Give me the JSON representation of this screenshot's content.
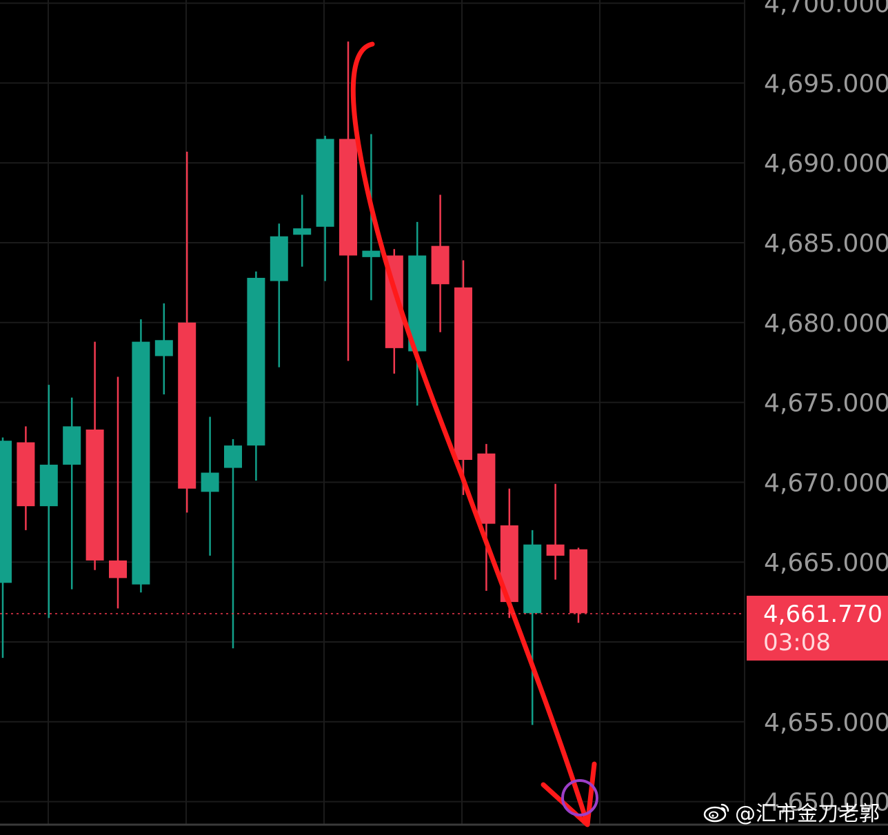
{
  "chart_data": {
    "type": "candlestick",
    "ylim": [
      4648.6,
      4700.2
    ],
    "y_ticks": [
      "4,650.000",
      "4,655.000",
      "4,665.000",
      "4,670.000",
      "4,675.000",
      "4,680.000",
      "4,685.000",
      "4,690.000",
      "4,695.000",
      "4,700.000"
    ],
    "grid": true,
    "colors": {
      "up": "#12a08a",
      "down": "#f2394f",
      "background": "#000000",
      "annotation": "#ff1a1a"
    },
    "candles": [
      {
        "open": 4663.7,
        "high": 4672.8,
        "low": 4659.0,
        "close": 4672.6
      },
      {
        "open": 4672.5,
        "high": 4673.5,
        "low": 4667.0,
        "close": 4668.5
      },
      {
        "open": 4668.5,
        "high": 4676.1,
        "low": 4661.5,
        "close": 4671.1
      },
      {
        "open": 4671.1,
        "high": 4675.3,
        "low": 4663.3,
        "close": 4673.5
      },
      {
        "open": 4673.3,
        "high": 4678.8,
        "low": 4664.5,
        "close": 4665.1
      },
      {
        "open": 4665.1,
        "high": 4676.6,
        "low": 4662.1,
        "close": 4664.0
      },
      {
        "open": 4663.6,
        "high": 4680.2,
        "low": 4663.1,
        "close": 4678.8
      },
      {
        "open": 4677.9,
        "high": 4681.2,
        "low": 4675.5,
        "close": 4678.9
      },
      {
        "open": 4680.0,
        "high": 4690.7,
        "low": 4668.1,
        "close": 4669.6
      },
      {
        "open": 4669.4,
        "high": 4674.1,
        "low": 4665.4,
        "close": 4670.6
      },
      {
        "open": 4670.9,
        "high": 4672.7,
        "low": 4659.6,
        "close": 4672.3
      },
      {
        "open": 4672.3,
        "high": 4683.2,
        "low": 4670.1,
        "close": 4682.8
      },
      {
        "open": 4682.6,
        "high": 4686.2,
        "low": 4677.2,
        "close": 4685.4
      },
      {
        "open": 4685.5,
        "high": 4688.0,
        "low": 4683.5,
        "close": 4685.9
      },
      {
        "open": 4686.0,
        "high": 4691.7,
        "low": 4682.6,
        "close": 4691.5
      },
      {
        "open": 4691.5,
        "high": 4697.6,
        "low": 4677.6,
        "close": 4684.2
      },
      {
        "open": 4684.1,
        "high": 4691.8,
        "low": 4681.4,
        "close": 4684.5
      },
      {
        "open": 4684.2,
        "high": 4684.6,
        "low": 4676.8,
        "close": 4678.4
      },
      {
        "open": 4678.2,
        "high": 4686.3,
        "low": 4674.8,
        "close": 4684.2
      },
      {
        "open": 4684.8,
        "high": 4688.0,
        "low": 4679.4,
        "close": 4682.4
      },
      {
        "open": 4682.2,
        "high": 4683.9,
        "low": 4669.2,
        "close": 4671.4
      },
      {
        "open": 4671.8,
        "high": 4672.4,
        "low": 4663.2,
        "close": 4667.4
      },
      {
        "open": 4667.3,
        "high": 4669.6,
        "low": 4661.5,
        "close": 4662.5
      },
      {
        "open": 4661.8,
        "high": 4667.0,
        "low": 4654.8,
        "close": 4666.1
      },
      {
        "open": 4666.1,
        "high": 4669.9,
        "low": 4663.9,
        "close": 4665.4
      },
      {
        "open": 4665.8,
        "high": 4665.9,
        "low": 4661.2,
        "close": 4661.8
      }
    ],
    "current_price": "4,661.770",
    "countdown": "03:08"
  },
  "watermark": {
    "text": "@汇市金刀老郭",
    "icon": "weibo-icon"
  }
}
